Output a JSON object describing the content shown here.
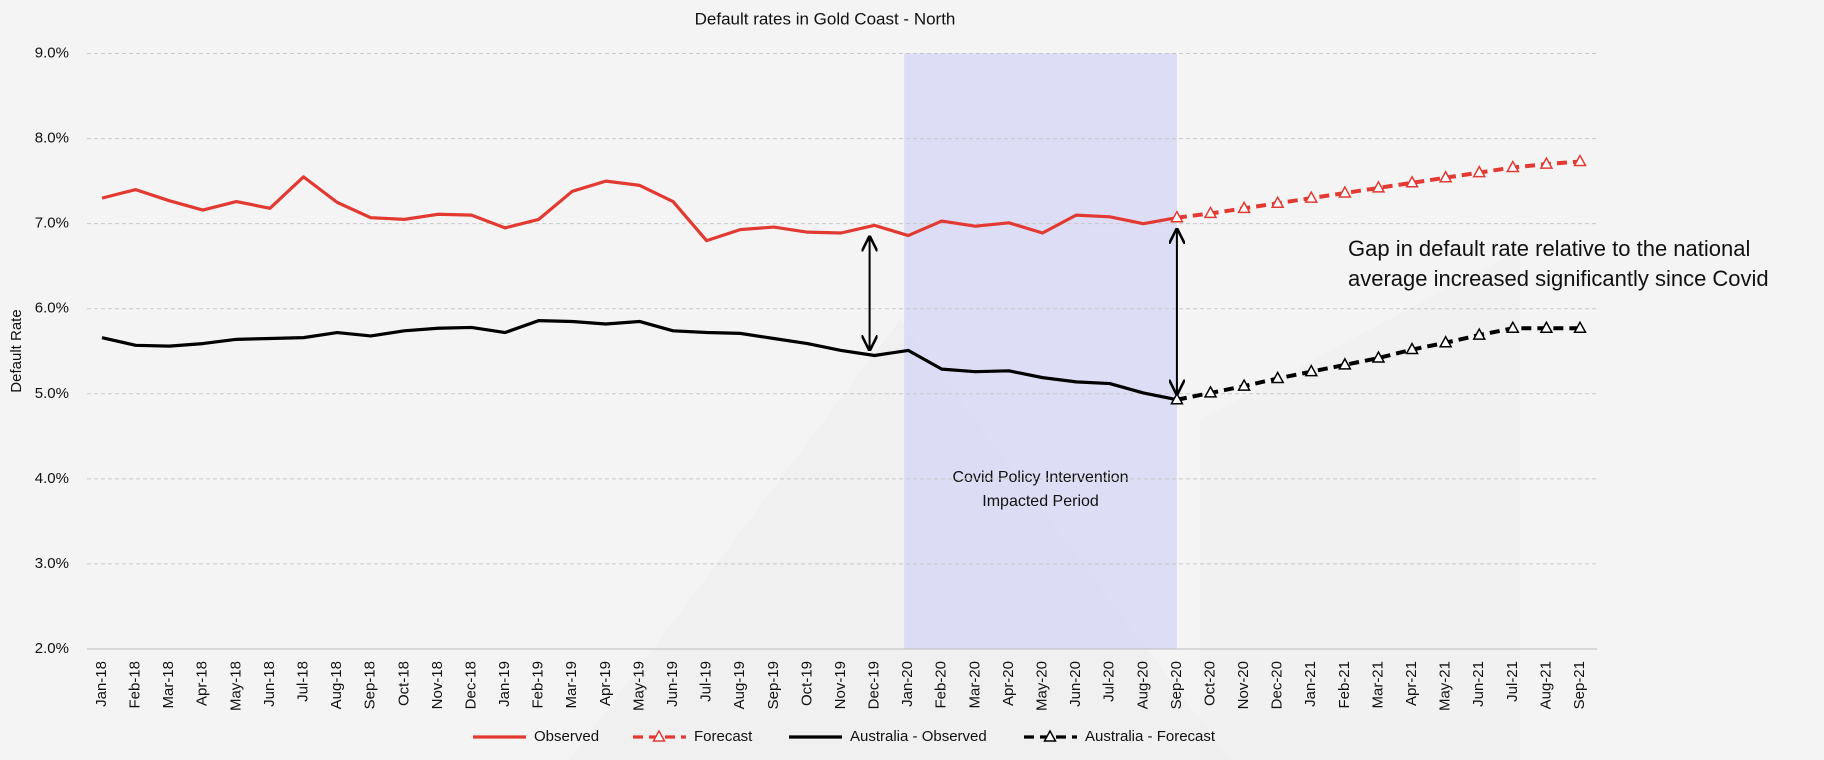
{
  "chart_data": {
    "type": "line",
    "title": "Default rates in Gold Coast - North",
    "y_label": "Default Rate",
    "categories": [
      "Jan-18",
      "Feb-18",
      "Mar-18",
      "Apr-18",
      "May-18",
      "Jun-18",
      "Jul-18",
      "Aug-18",
      "Sep-18",
      "Oct-18",
      "Nov-18",
      "Dec-18",
      "Jan-19",
      "Feb-19",
      "Mar-19",
      "Apr-19",
      "May-19",
      "Jun-19",
      "Jul-19",
      "Aug-19",
      "Sep-19",
      "Oct-19",
      "Nov-19",
      "Dec-19",
      "Jan-20",
      "Feb-20",
      "Mar-20",
      "Apr-20",
      "May-20",
      "Jun-20",
      "Jul-20",
      "Aug-20",
      "Sep-20",
      "Oct-20",
      "Nov-20",
      "Dec-20",
      "Jan-21",
      "Feb-21",
      "Mar-21",
      "Apr-21",
      "May-21",
      "Jun-21",
      "Jul-21",
      "Aug-21",
      "Sep-21"
    ],
    "series": [
      {
        "name": "Observed",
        "color": "#e23a32",
        "dashed": false,
        "marker": false,
        "values": [
          7.3,
          7.4,
          7.27,
          7.16,
          7.26,
          7.18,
          7.55,
          7.25,
          7.07,
          7.05,
          7.11,
          7.1,
          6.95,
          7.05,
          7.38,
          7.5,
          7.45,
          7.26,
          6.8,
          6.93,
          6.96,
          6.9,
          6.89,
          6.98,
          6.86,
          7.03,
          6.97,
          7.01,
          6.89,
          7.1,
          7.08,
          7.0,
          7.07,
          null,
          null,
          null,
          null,
          null,
          null,
          null,
          null,
          null,
          null,
          null,
          null
        ]
      },
      {
        "name": "Forecast",
        "color": "#e23a32",
        "dashed": true,
        "marker": true,
        "values": [
          null,
          null,
          null,
          null,
          null,
          null,
          null,
          null,
          null,
          null,
          null,
          null,
          null,
          null,
          null,
          null,
          null,
          null,
          null,
          null,
          null,
          null,
          null,
          null,
          null,
          null,
          null,
          null,
          null,
          null,
          null,
          null,
          7.07,
          7.12,
          7.18,
          7.24,
          7.3,
          7.36,
          7.42,
          7.48,
          7.54,
          7.6,
          7.66,
          7.7,
          7.73
        ]
      },
      {
        "name": "Australia - Observed",
        "color": "#000000",
        "dashed": false,
        "marker": false,
        "values": [
          5.66,
          5.57,
          5.56,
          5.59,
          5.64,
          5.65,
          5.66,
          5.72,
          5.68,
          5.74,
          5.77,
          5.78,
          5.72,
          5.86,
          5.85,
          5.82,
          5.85,
          5.74,
          5.72,
          5.71,
          5.65,
          5.59,
          5.51,
          5.45,
          5.51,
          5.29,
          5.26,
          5.27,
          5.19,
          5.14,
          5.12,
          5.01,
          4.93,
          null,
          null,
          null,
          null,
          null,
          null,
          null,
          null,
          null,
          null,
          null,
          null
        ]
      },
      {
        "name": "Australia - Forecast",
        "color": "#000000",
        "dashed": true,
        "marker": true,
        "values": [
          null,
          null,
          null,
          null,
          null,
          null,
          null,
          null,
          null,
          null,
          null,
          null,
          null,
          null,
          null,
          null,
          null,
          null,
          null,
          null,
          null,
          null,
          null,
          null,
          null,
          null,
          null,
          null,
          null,
          null,
          null,
          null,
          4.93,
          5.01,
          5.09,
          5.18,
          5.26,
          5.34,
          5.42,
          5.52,
          5.6,
          5.69,
          5.77,
          5.77,
          5.77
        ]
      }
    ],
    "ylim": [
      2,
      9
    ],
    "yticks": [
      {
        "value": 2,
        "label": "2.0%"
      },
      {
        "value": 3,
        "label": "3.0%"
      },
      {
        "value": 4,
        "label": "4.0%"
      },
      {
        "value": 5,
        "label": "5.0%"
      },
      {
        "value": 6,
        "label": "6.0%"
      },
      {
        "value": 7,
        "label": "7.0%"
      },
      {
        "value": 8,
        "label": "8.0%"
      },
      {
        "value": 9,
        "label": "9.0%"
      }
    ],
    "grid": true,
    "legend": "bottom",
    "shaded_region": {
      "from": "Jan-20",
      "to": "Sep-20",
      "color": "#d8d8f4",
      "lines": [
        "Covid Policy Intervention",
        "Impacted Period"
      ]
    },
    "gap_arrows_at": [
      "Dec-19",
      "Sep-20"
    ],
    "annotation": {
      "lines": [
        "Gap in default rate relative to the national",
        "average increased significantly since Covid"
      ]
    }
  }
}
